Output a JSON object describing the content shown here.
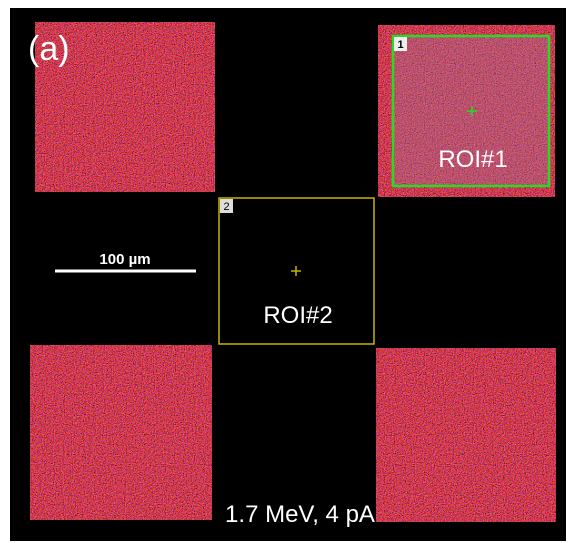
{
  "panel_label": "(a)",
  "rois": [
    {
      "number": "1",
      "label": "ROI#1"
    },
    {
      "number": "2",
      "label": "ROI#2"
    }
  ],
  "scale_bar": "100 µm",
  "caption": "1.7 MeV, 4 pA"
}
